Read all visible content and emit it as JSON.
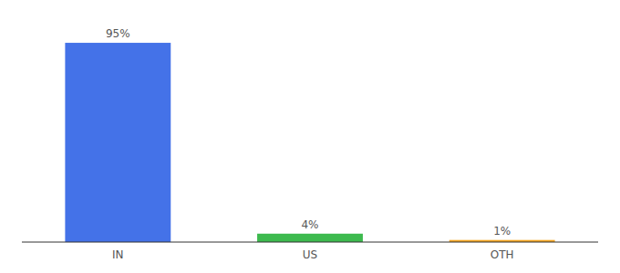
{
  "chart_data": {
    "type": "bar",
    "categories": [
      "IN",
      "US",
      "OTH"
    ],
    "values": [
      95,
      4,
      1
    ],
    "value_labels": [
      "95%",
      "4%",
      "1%"
    ],
    "colors": [
      "#4472e8",
      "#3dba4e",
      "#f5a623"
    ],
    "ylim": [
      0,
      105
    ],
    "data_labels": true,
    "tick_labels": "x",
    "grid": false
  }
}
